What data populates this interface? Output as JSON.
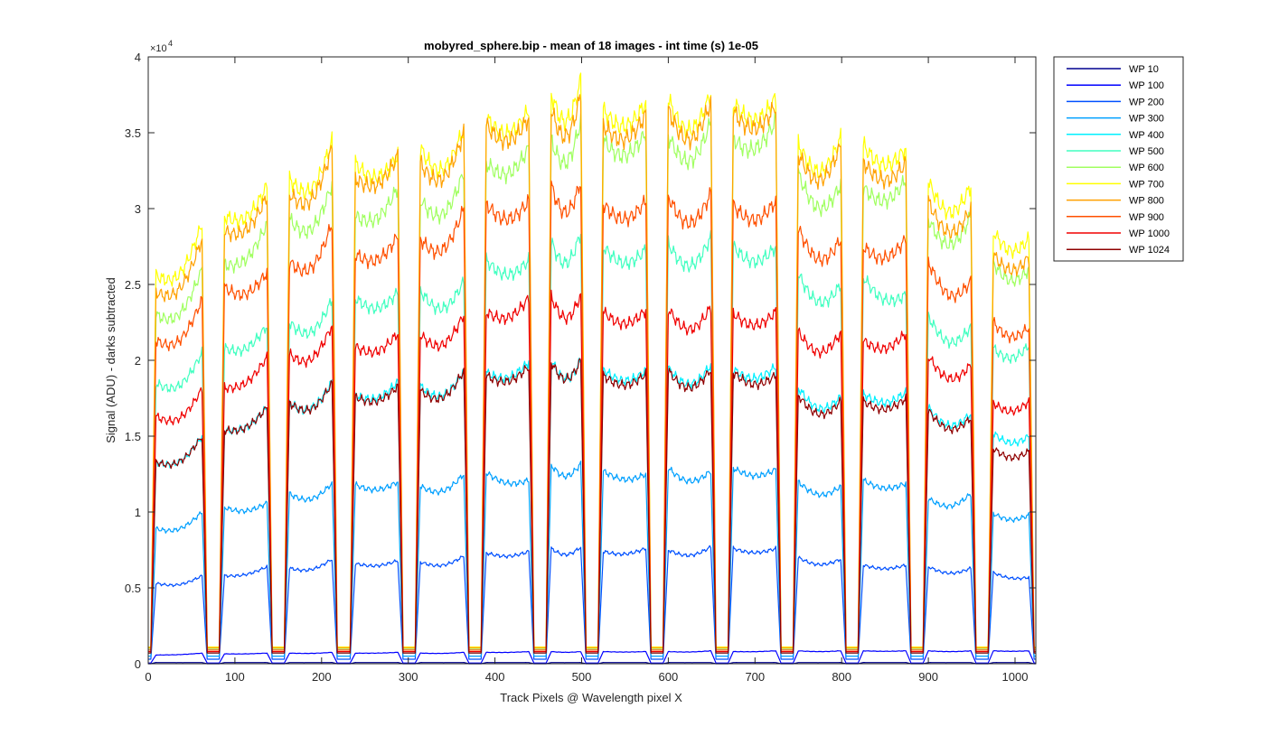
{
  "chart_data": {
    "type": "line",
    "title": "mobyred_sphere.bip - mean of 18 images - int time (s) 1e-05",
    "xlabel": "Track Pixels @ Wavelength pixel X",
    "ylabel": "Signal (ADU) - darks subtracted",
    "xlim": [
      0,
      1024
    ],
    "ylim": [
      0,
      40000
    ],
    "y_exponent_label": "×10",
    "y_exponent_power": "4",
    "x_ticks": [
      0,
      100,
      200,
      300,
      400,
      500,
      600,
      700,
      800,
      900,
      1000
    ],
    "x_tick_labels": [
      "0",
      "100",
      "200",
      "300",
      "400",
      "500",
      "600",
      "700",
      "800",
      "900",
      "1000"
    ],
    "y_ticks": [
      0,
      5000,
      10000,
      15000,
      20000,
      25000,
      30000,
      35000,
      40000
    ],
    "y_tick_labels": [
      "0",
      "0.5",
      "1",
      "1.5",
      "2",
      "2.5",
      "3",
      "3.5",
      "4"
    ],
    "grid": false,
    "legend_position": "outside-top-right",
    "tracks": [
      {
        "start": 3,
        "end": 68
      },
      {
        "start": 82,
        "end": 143
      },
      {
        "start": 157,
        "end": 218
      },
      {
        "start": 233,
        "end": 294
      },
      {
        "start": 308,
        "end": 370
      },
      {
        "start": 384,
        "end": 445
      },
      {
        "start": 459,
        "end": 505
      },
      {
        "start": 519,
        "end": 580
      },
      {
        "start": 594,
        "end": 655
      },
      {
        "start": 669,
        "end": 730
      },
      {
        "start": 744,
        "end": 805
      },
      {
        "start": 819,
        "end": 880
      },
      {
        "start": 894,
        "end": 955
      },
      {
        "start": 969,
        "end": 1022
      }
    ],
    "series": [
      {
        "name": "WP 10",
        "color": "#00008f",
        "gap_level": 0,
        "levels": [
          [
            80,
            80
          ],
          [
            80,
            80
          ],
          [
            80,
            80
          ],
          [
            80,
            80
          ],
          [
            80,
            80
          ],
          [
            80,
            80
          ],
          [
            80,
            80
          ],
          [
            80,
            80
          ],
          [
            80,
            80
          ],
          [
            80,
            80
          ],
          [
            80,
            80
          ],
          [
            80,
            80
          ],
          [
            80,
            80
          ],
          [
            80,
            80
          ]
        ]
      },
      {
        "name": "WP 100",
        "color": "#0000ff",
        "gap_level": 50,
        "levels": [
          [
            580,
            700
          ],
          [
            650,
            700
          ],
          [
            700,
            750
          ],
          [
            700,
            750
          ],
          [
            700,
            750
          ],
          [
            750,
            800
          ],
          [
            800,
            800
          ],
          [
            800,
            800
          ],
          [
            800,
            850
          ],
          [
            800,
            850
          ],
          [
            850,
            850
          ],
          [
            850,
            850
          ],
          [
            850,
            850
          ],
          [
            850,
            850
          ]
        ]
      },
      {
        "name": "WP 200",
        "color": "#0050ff",
        "gap_level": 300,
        "levels": [
          [
            5300,
            5800
          ],
          [
            5800,
            6400
          ],
          [
            6300,
            6900
          ],
          [
            6600,
            6800
          ],
          [
            6700,
            7100
          ],
          [
            7300,
            7400
          ],
          [
            7600,
            7700
          ],
          [
            7400,
            7600
          ],
          [
            7500,
            7700
          ],
          [
            7600,
            7600
          ],
          [
            7000,
            6900
          ],
          [
            6500,
            6500
          ],
          [
            6400,
            6300
          ],
          [
            6000,
            5700
          ]
        ]
      },
      {
        "name": "WP 300",
        "color": "#00a0ff",
        "gap_level": 500,
        "levels": [
          [
            8900,
            10000
          ],
          [
            10300,
            10600
          ],
          [
            11200,
            11900
          ],
          [
            11800,
            12000
          ],
          [
            11700,
            12500
          ],
          [
            12600,
            12100
          ],
          [
            13100,
            13200
          ],
          [
            12700,
            12500
          ],
          [
            12900,
            12700
          ],
          [
            12900,
            12800
          ],
          [
            12000,
            11700
          ],
          [
            12100,
            11900
          ],
          [
            10900,
            11200
          ],
          [
            9900,
            9800
          ]
        ]
      },
      {
        "name": "WP 400",
        "color": "#00f0ff",
        "gap_level": 700,
        "levels": [
          [
            13300,
            15000
          ],
          [
            15400,
            16900
          ],
          [
            17200,
            18600
          ],
          [
            17700,
            18600
          ],
          [
            18300,
            19300
          ],
          [
            19200,
            19900
          ],
          [
            20000,
            20000
          ],
          [
            19400,
            19300
          ],
          [
            19500,
            19700
          ],
          [
            19400,
            19600
          ],
          [
            18200,
            17600
          ],
          [
            17800,
            17900
          ],
          [
            16900,
            16500
          ],
          [
            15200,
            15000
          ]
        ]
      },
      {
        "name": "WP 500",
        "color": "#40ffc0",
        "gap_level": 900,
        "levels": [
          [
            18500,
            20500
          ],
          [
            20800,
            22300
          ],
          [
            22500,
            24000
          ],
          [
            24100,
            24500
          ],
          [
            24600,
            25200
          ],
          [
            26600,
            26600
          ],
          [
            27800,
            28400
          ],
          [
            27500,
            27300
          ],
          [
            27700,
            28100
          ],
          [
            27500,
            27500
          ],
          [
            25700,
            25000
          ],
          [
            25500,
            24300
          ],
          [
            22900,
            22200
          ],
          [
            20800,
            21000
          ]
        ]
      },
      {
        "name": "WP 600",
        "color": "#a0ff60",
        "gap_level": 1000,
        "levels": [
          [
            23000,
            26000
          ],
          [
            26300,
            29000
          ],
          [
            29300,
            31600
          ],
          [
            29500,
            31400
          ],
          [
            30600,
            32400
          ],
          [
            33000,
            34000
          ],
          [
            34500,
            35800
          ],
          [
            34500,
            35000
          ],
          [
            34800,
            35700
          ],
          [
            34600,
            35800
          ],
          [
            32300,
            31600
          ],
          [
            31400,
            31900
          ],
          [
            29300,
            29500
          ],
          [
            26400,
            26000
          ]
        ]
      },
      {
        "name": "WP 700",
        "color": "#ffff00",
        "gap_level": 1100,
        "levels": [
          [
            25600,
            29000
          ],
          [
            29500,
            31500
          ],
          [
            32000,
            34500
          ],
          [
            33000,
            33500
          ],
          [
            34000,
            35300
          ],
          [
            36000,
            36500
          ],
          [
            37600,
            38500
          ],
          [
            36500,
            37000
          ],
          [
            37200,
            37600
          ],
          [
            37000,
            37300
          ],
          [
            34300,
            34700
          ],
          [
            34200,
            34000
          ],
          [
            31800,
            31500
          ],
          [
            28500,
            28000
          ]
        ]
      },
      {
        "name": "WP 800",
        "color": "#ffa000",
        "gap_level": 1050,
        "levels": [
          [
            24500,
            28000
          ],
          [
            28500,
            30800
          ],
          [
            31000,
            34000
          ],
          [
            32000,
            33500
          ],
          [
            33000,
            35000
          ],
          [
            35500,
            36000
          ],
          [
            36500,
            37500
          ],
          [
            35500,
            36200
          ],
          [
            36500,
            37000
          ],
          [
            36400,
            36800
          ],
          [
            33600,
            34200
          ],
          [
            33100,
            33000
          ],
          [
            30500,
            30000
          ],
          [
            27000,
            26800
          ]
        ]
      },
      {
        "name": "WP 900",
        "color": "#ff5000",
        "gap_level": 900,
        "levels": [
          [
            21300,
            24000
          ],
          [
            24800,
            25800
          ],
          [
            26500,
            29000
          ],
          [
            27000,
            28200
          ],
          [
            28000,
            30000
          ],
          [
            30300,
            30500
          ],
          [
            31500,
            31800
          ],
          [
            30300,
            30500
          ],
          [
            30800,
            31000
          ],
          [
            30200,
            30500
          ],
          [
            28700,
            28000
          ],
          [
            27500,
            28000
          ],
          [
            26500,
            25200
          ],
          [
            22500,
            22200
          ]
        ]
      },
      {
        "name": "WP 1000",
        "color": "#f00000",
        "gap_level": 800,
        "levels": [
          [
            16300,
            18100
          ],
          [
            18200,
            20200
          ],
          [
            20400,
            22300
          ],
          [
            20900,
            21800
          ],
          [
            21700,
            23000
          ],
          [
            23200,
            24100
          ],
          [
            24200,
            24300
          ],
          [
            23200,
            23300
          ],
          [
            23400,
            23500
          ],
          [
            23100,
            23200
          ],
          [
            21900,
            21800
          ],
          [
            21300,
            21800
          ],
          [
            20300,
            19700
          ],
          [
            17200,
            17300
          ]
        ]
      },
      {
        "name": "WP 1024",
        "color": "#8f0000",
        "gap_level": 700,
        "levels": [
          [
            13300,
            15000
          ],
          [
            15400,
            16900
          ],
          [
            17200,
            18500
          ],
          [
            17600,
            18300
          ],
          [
            18000,
            19300
          ],
          [
            19000,
            19600
          ],
          [
            19900,
            20000
          ],
          [
            19000,
            19100
          ],
          [
            19300,
            19400
          ],
          [
            19200,
            19000
          ],
          [
            17700,
            17300
          ],
          [
            17300,
            17500
          ],
          [
            16700,
            16200
          ],
          [
            14200,
            14000
          ]
        ]
      }
    ]
  }
}
